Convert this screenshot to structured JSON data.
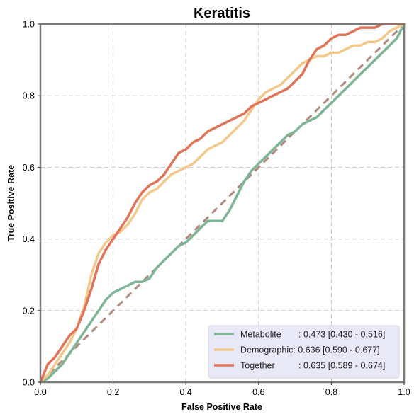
{
  "chart_data": {
    "type": "line",
    "title": "Keratitis",
    "xlabel": "False Positive Rate",
    "ylabel": "True Positive Rate",
    "xlim": [
      0,
      1
    ],
    "ylim": [
      0,
      1
    ],
    "xticks": [
      "0.0",
      "0.2",
      "0.4",
      "0.6",
      "0.8",
      "1.0"
    ],
    "yticks": [
      "0.0",
      "0.2",
      "0.4",
      "0.6",
      "0.8",
      "1.0"
    ],
    "grid": true,
    "legend_position": "bottom-right",
    "diagonal": {
      "x": [
        0,
        1
      ],
      "y": [
        0,
        1
      ],
      "color": "#b08a7c",
      "style": "dashed"
    },
    "series": [
      {
        "name": "Metabolite",
        "label": ": 0.473 [0.430 - 0.516]",
        "color": "#7fb597",
        "x": [
          0.0,
          0.02,
          0.04,
          0.06,
          0.08,
          0.1,
          0.12,
          0.14,
          0.16,
          0.18,
          0.2,
          0.22,
          0.24,
          0.26,
          0.28,
          0.3,
          0.32,
          0.34,
          0.36,
          0.38,
          0.4,
          0.42,
          0.44,
          0.46,
          0.48,
          0.5,
          0.52,
          0.54,
          0.56,
          0.58,
          0.6,
          0.62,
          0.64,
          0.66,
          0.68,
          0.7,
          0.72,
          0.74,
          0.76,
          0.78,
          0.8,
          0.82,
          0.84,
          0.86,
          0.88,
          0.9,
          0.92,
          0.94,
          0.96,
          0.98,
          1.0
        ],
        "y": [
          0.0,
          0.01,
          0.03,
          0.05,
          0.08,
          0.11,
          0.14,
          0.17,
          0.2,
          0.23,
          0.25,
          0.26,
          0.27,
          0.28,
          0.28,
          0.29,
          0.32,
          0.34,
          0.36,
          0.38,
          0.39,
          0.41,
          0.43,
          0.45,
          0.45,
          0.45,
          0.48,
          0.52,
          0.56,
          0.59,
          0.61,
          0.63,
          0.65,
          0.67,
          0.69,
          0.7,
          0.72,
          0.73,
          0.74,
          0.76,
          0.78,
          0.8,
          0.82,
          0.84,
          0.86,
          0.88,
          0.9,
          0.92,
          0.94,
          0.96,
          1.0
        ]
      },
      {
        "name": "Demographic",
        "label": ": 0.636 [0.590 - 0.677]",
        "color": "#f2c98a",
        "x": [
          0.0,
          0.02,
          0.04,
          0.06,
          0.08,
          0.1,
          0.12,
          0.14,
          0.16,
          0.18,
          0.2,
          0.22,
          0.24,
          0.26,
          0.28,
          0.3,
          0.32,
          0.34,
          0.36,
          0.38,
          0.4,
          0.42,
          0.44,
          0.46,
          0.48,
          0.5,
          0.52,
          0.54,
          0.56,
          0.58,
          0.6,
          0.62,
          0.64,
          0.66,
          0.68,
          0.7,
          0.72,
          0.74,
          0.76,
          0.78,
          0.8,
          0.82,
          0.84,
          0.86,
          0.88,
          0.9,
          0.92,
          0.94,
          0.96,
          0.98,
          1.0
        ],
        "y": [
          0.0,
          0.02,
          0.05,
          0.08,
          0.11,
          0.15,
          0.21,
          0.3,
          0.36,
          0.39,
          0.41,
          0.42,
          0.44,
          0.47,
          0.51,
          0.53,
          0.54,
          0.56,
          0.58,
          0.59,
          0.6,
          0.61,
          0.63,
          0.65,
          0.66,
          0.67,
          0.69,
          0.71,
          0.73,
          0.76,
          0.79,
          0.81,
          0.82,
          0.83,
          0.85,
          0.87,
          0.89,
          0.9,
          0.91,
          0.91,
          0.92,
          0.92,
          0.93,
          0.94,
          0.94,
          0.95,
          0.95,
          0.96,
          0.98,
          0.99,
          1.0
        ]
      },
      {
        "name": "Together",
        "label": ": 0.635 [0.589 - 0.674]",
        "color": "#e07358",
        "x": [
          0.0,
          0.02,
          0.04,
          0.06,
          0.08,
          0.1,
          0.12,
          0.14,
          0.16,
          0.18,
          0.2,
          0.22,
          0.24,
          0.26,
          0.28,
          0.3,
          0.32,
          0.34,
          0.36,
          0.38,
          0.4,
          0.42,
          0.44,
          0.46,
          0.48,
          0.5,
          0.52,
          0.54,
          0.56,
          0.58,
          0.6,
          0.62,
          0.64,
          0.66,
          0.68,
          0.7,
          0.72,
          0.74,
          0.76,
          0.78,
          0.8,
          0.82,
          0.84,
          0.86,
          0.88,
          0.9,
          0.92,
          0.94,
          0.96,
          0.98,
          1.0
        ],
        "y": [
          0.0,
          0.05,
          0.07,
          0.1,
          0.13,
          0.15,
          0.2,
          0.26,
          0.33,
          0.37,
          0.4,
          0.43,
          0.46,
          0.5,
          0.53,
          0.55,
          0.56,
          0.58,
          0.61,
          0.64,
          0.65,
          0.67,
          0.68,
          0.7,
          0.71,
          0.72,
          0.73,
          0.74,
          0.75,
          0.77,
          0.78,
          0.79,
          0.8,
          0.81,
          0.82,
          0.84,
          0.86,
          0.9,
          0.93,
          0.94,
          0.96,
          0.97,
          0.97,
          0.98,
          0.99,
          0.99,
          0.99,
          1.0,
          1.0,
          1.0,
          1.0
        ]
      }
    ]
  }
}
